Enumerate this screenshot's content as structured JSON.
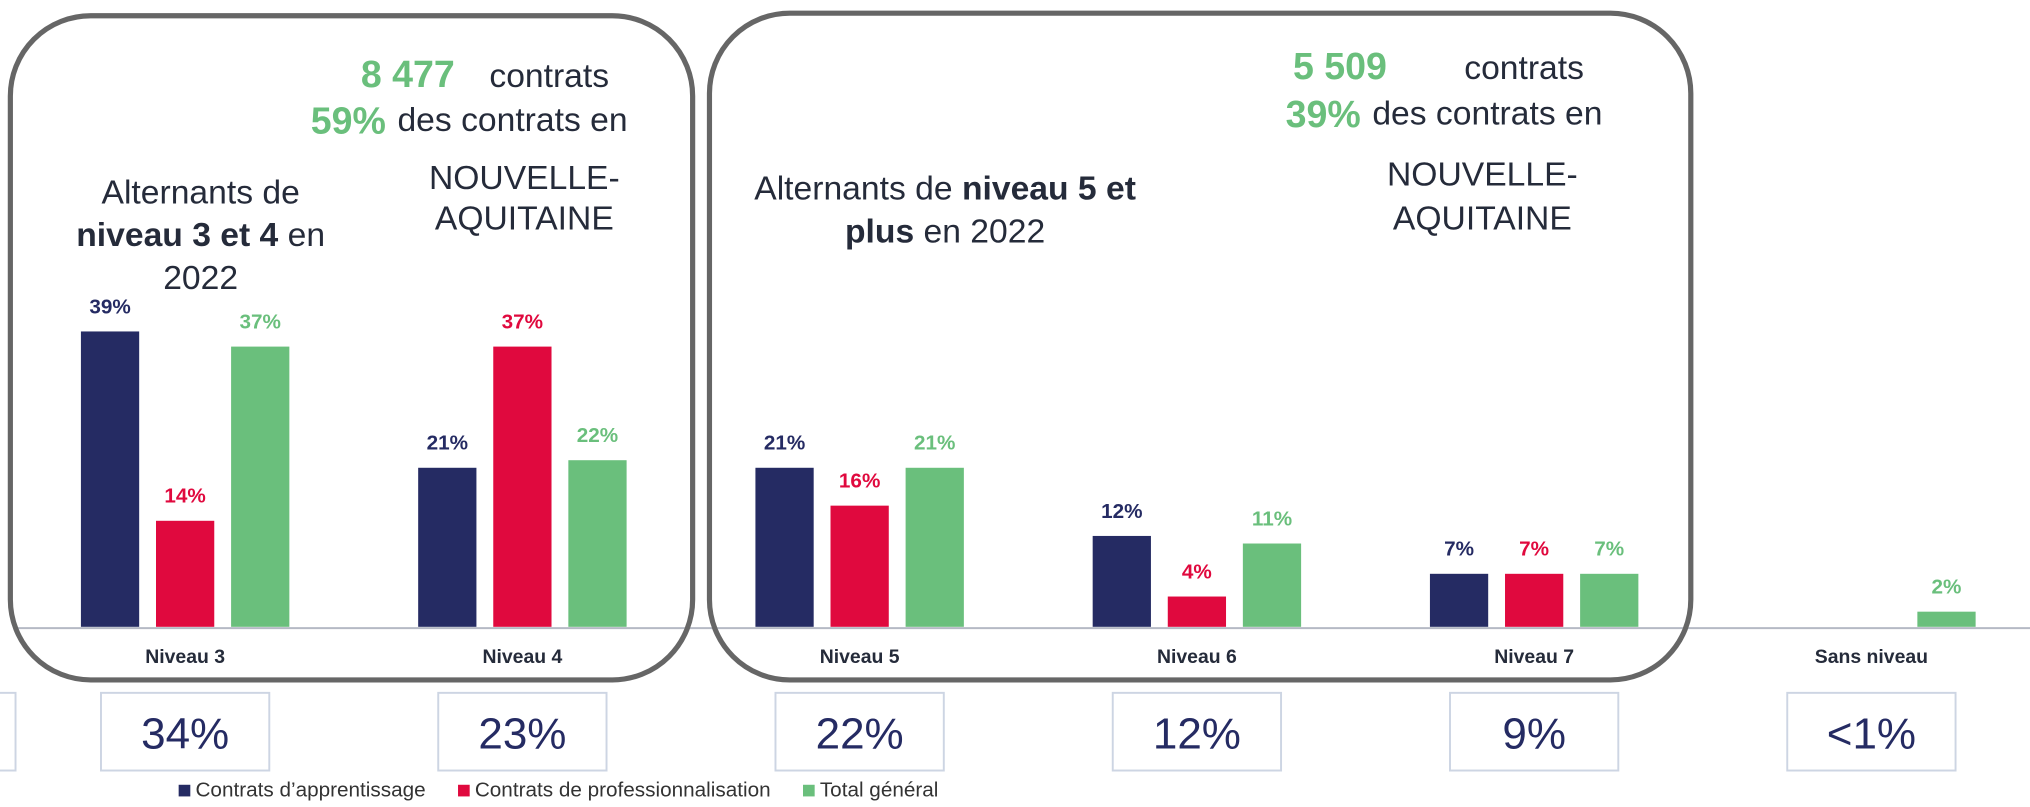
{
  "chart_data": {
    "type": "bar",
    "categories": [
      "Niveau 3",
      "Niveau 4",
      "Niveau 5",
      "Niveau 6",
      "Niveau 7",
      "Sans niveau"
    ],
    "series": [
      {
        "name": "Contrats d’apprentissage",
        "color": "#252b63",
        "values": [
          39,
          21,
          21,
          12,
          7,
          null
        ],
        "value_labels": [
          "39%",
          "21%",
          "21%",
          "12%",
          "7%",
          null
        ]
      },
      {
        "name": "Contrats de professionnalisation",
        "color": "#e0093e",
        "values": [
          14,
          37,
          16,
          4,
          7,
          null
        ],
        "value_labels": [
          "14%",
          "37%",
          "16%",
          "4%",
          "7%",
          null
        ]
      },
      {
        "name": "Total général",
        "color": "#6abf7c",
        "values": [
          37,
          22,
          21,
          11,
          7,
          2
        ],
        "value_labels": [
          "37%",
          "22%",
          "21%",
          "11%",
          "7%",
          "2%"
        ]
      }
    ],
    "share_labels": [
      "34%",
      "23%",
      "22%",
      "12%",
      "9%",
      "<1%"
    ],
    "annotations": [
      {
        "count": "8 477",
        "count_word": "contrats",
        "share": "59%",
        "share_text": "des contrats en",
        "region": [
          "NOUVELLE-",
          "AQUITAINE"
        ],
        "lines": [
          [
            {
              "text": "Alternants de",
              "bold": false
            }
          ],
          [
            {
              "text": "niveau 3 et 4",
              "bold": true
            },
            {
              "text": " en",
              "bold": false
            }
          ],
          [
            {
              "text": "2022",
              "bold": false
            }
          ]
        ]
      },
      {
        "count": "5 509",
        "count_word": "contrats",
        "share": "39%",
        "share_text": "des contrats en",
        "region": [
          "NOUVELLE-",
          "AQUITAINE"
        ],
        "lines": [
          [
            {
              "text": "Alternants de ",
              "bold": false
            },
            {
              "text": "niveau 5 et",
              "bold": true
            }
          ],
          [
            {
              "text": "plus",
              "bold": true
            },
            {
              "text": " en 2022",
              "bold": false
            }
          ]
        ]
      }
    ]
  }
}
